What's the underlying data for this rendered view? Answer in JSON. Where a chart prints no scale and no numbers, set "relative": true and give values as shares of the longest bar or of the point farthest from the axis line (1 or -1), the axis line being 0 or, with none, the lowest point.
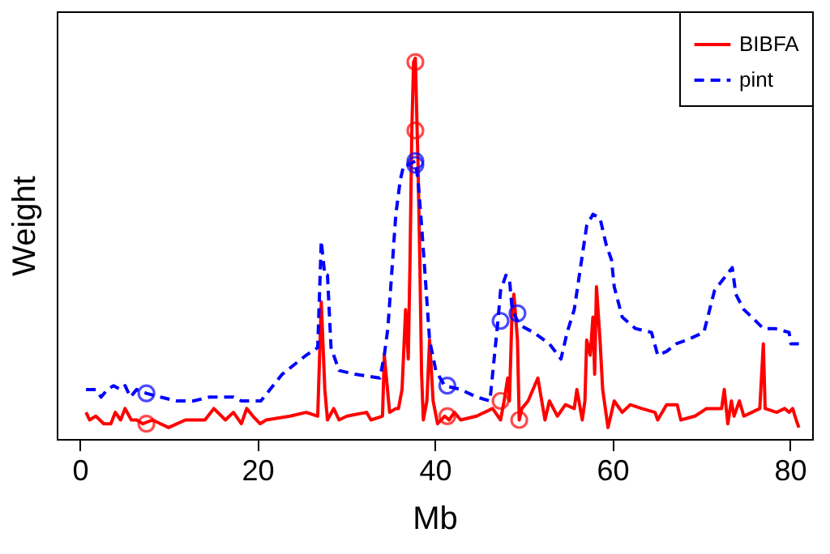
{
  "chart_data": {
    "type": "line",
    "relative": true,
    "xlabel": "Mb",
    "ylabel": "Weight",
    "xlim": [
      -2.6,
      82.5
    ],
    "xticks": [
      0,
      20,
      40,
      60,
      80
    ],
    "legend": "top right",
    "grid": false,
    "series": [
      {
        "name": "BIBFA",
        "color": "#ff0000",
        "line_style": "solid",
        "x": [
          0.7,
          1.1,
          1.8,
          2.7,
          3.5,
          4.0,
          4.6,
          5.1,
          5.8,
          6.4,
          7.1,
          8.2,
          9.1,
          10.0,
          11.9,
          14.1,
          15.1,
          16.4,
          17.3,
          18.2,
          18.8,
          19.5,
          20.3,
          21.0,
          23.7,
          25.5,
          26.8,
          27.2,
          27.6,
          27.9,
          28.6,
          29.2,
          30.1,
          32.3,
          32.8,
          34.1,
          34.3,
          34.9,
          35.6,
          35.9,
          36.3,
          36.7,
          37.0,
          37.2,
          37.4,
          37.6,
          37.8,
          38.0,
          38.1,
          38.3,
          38.5,
          38.7,
          39.1,
          39.4,
          39.8,
          40.3,
          41.1,
          41.6,
          42.2,
          42.9,
          44.7,
          46.5,
          47.4,
          47.8,
          48.2,
          48.4,
          48.7,
          48.9,
          49.3,
          49.5,
          49.8,
          50.5,
          51.6,
          52.4,
          52.9,
          53.8,
          54.7,
          55.7,
          56.0,
          56.6,
          56.9,
          57.1,
          57.5,
          57.8,
          58.0,
          58.2,
          58.6,
          58.9,
          59.5,
          60.2,
          61.1,
          62.0,
          63.3,
          64.8,
          65.1,
          66.1,
          67.3,
          67.7,
          69.3,
          70.6,
          72.3,
          72.6,
          73.0,
          73.4,
          73.7,
          74.3,
          74.8,
          75.7,
          76.6,
          77.0,
          77.2,
          78.5,
          79.4,
          79.9,
          80.3,
          80.7,
          81.0
        ],
        "values": [
          0.07,
          0.05,
          0.06,
          0.04,
          0.04,
          0.07,
          0.05,
          0.08,
          0.05,
          0.05,
          0.04,
          0.05,
          0.04,
          0.03,
          0.05,
          0.05,
          0.08,
          0.05,
          0.07,
          0.04,
          0.08,
          0.06,
          0.04,
          0.05,
          0.06,
          0.07,
          0.06,
          0.36,
          0.13,
          0.05,
          0.08,
          0.05,
          0.06,
          0.07,
          0.05,
          0.06,
          0.22,
          0.07,
          0.08,
          0.08,
          0.13,
          0.34,
          0.21,
          0.47,
          0.81,
          0.99,
          1,
          0.81,
          0.72,
          0.47,
          0.17,
          0.05,
          0.1,
          0.26,
          0.1,
          0.04,
          0.06,
          0.05,
          0.07,
          0.05,
          0.06,
          0.08,
          0.05,
          0.1,
          0.16,
          0.1,
          0.34,
          0.38,
          0.26,
          0.05,
          0.08,
          0.1,
          0.16,
          0.05,
          0.1,
          0.06,
          0.09,
          0.08,
          0.13,
          0.05,
          0.1,
          0.26,
          0.22,
          0.32,
          0.17,
          0.4,
          0.26,
          0.13,
          0.03,
          0.1,
          0.07,
          0.09,
          0.08,
          0.07,
          0.05,
          0.09,
          0.09,
          0.05,
          0.06,
          0.08,
          0.08,
          0.13,
          0.04,
          0.1,
          0.06,
          0.1,
          0.06,
          0.07,
          0.08,
          0.25,
          0.08,
          0.07,
          0.08,
          0.07,
          0.08,
          0.05,
          0.03
        ]
      },
      {
        "name": "pint",
        "color": "#0000ff",
        "line_style": "dashed",
        "x": [
          0.7,
          1.8,
          2.4,
          3.1,
          3.8,
          4.6,
          5.1,
          5.7,
          6.4,
          7.5,
          9.1,
          10.9,
          12.8,
          14.6,
          16.4,
          17.3,
          18.2,
          19.2,
          20.4,
          22.8,
          25.5,
          26.8,
          27.2,
          27.6,
          27.9,
          28.3,
          29.2,
          31.0,
          33.8,
          34.3,
          34.7,
          35.6,
          36.1,
          36.5,
          37.0,
          37.8,
          38.1,
          38.5,
          38.9,
          39.4,
          40.1,
          41.1,
          42.9,
          44.7,
          46.2,
          46.5,
          47.1,
          47.4,
          48.0,
          48.4,
          48.7,
          49.5,
          51.1,
          52.9,
          54.2,
          54.9,
          55.7,
          56.4,
          57.1,
          57.8,
          58.6,
          59.3,
          59.9,
          60.2,
          61.1,
          62.6,
          64.4,
          65.1,
          66.1,
          67.2,
          68.4,
          70.3,
          71.5,
          73.5,
          73.9,
          74.8,
          75.7,
          77.0,
          78.3,
          79.9,
          80.1,
          81.0
        ],
        "values": [
          0.13,
          0.13,
          0.11,
          0.13,
          0.14,
          0.13,
          0.14,
          0.11,
          0.13,
          0.12,
          0.11,
          0.1,
          0.1,
          0.11,
          0.11,
          0.11,
          0.1,
          0.1,
          0.1,
          0.17,
          0.22,
          0.24,
          0.52,
          0.43,
          0.43,
          0.24,
          0.18,
          0.17,
          0.16,
          0.22,
          0.29,
          0.59,
          0.68,
          0.72,
          0.72,
          0.73,
          0.68,
          0.56,
          0.43,
          0.26,
          0.18,
          0.14,
          0.13,
          0.11,
          0.1,
          0.17,
          0.31,
          0.39,
          0.43,
          0.42,
          0.34,
          0.3,
          0.28,
          0.25,
          0.21,
          0.28,
          0.34,
          0.45,
          0.56,
          0.59,
          0.58,
          0.51,
          0.47,
          0.4,
          0.32,
          0.29,
          0.28,
          0.22,
          0.23,
          0.25,
          0.26,
          0.28,
          0.39,
          0.45,
          0.38,
          0.34,
          0.32,
          0.29,
          0.29,
          0.28,
          0.25,
          0.25
        ]
      },
      {
        "type": "scatter",
        "marker": "circle",
        "color": "#ff0000",
        "x": [
          7.5,
          37.8,
          37.8,
          41.4,
          47.4,
          49.5
        ],
        "values": [
          0.04,
          0.99,
          0.81,
          0.06,
          0.1,
          0.05
        ]
      },
      {
        "type": "scatter",
        "marker": "circle",
        "color": "#0000ff",
        "x": [
          7.5,
          37.8,
          37.8,
          41.4,
          47.4,
          49.3
        ],
        "values": [
          0.12,
          0.73,
          0.72,
          0.14,
          0.31,
          0.33
        ]
      }
    ]
  }
}
